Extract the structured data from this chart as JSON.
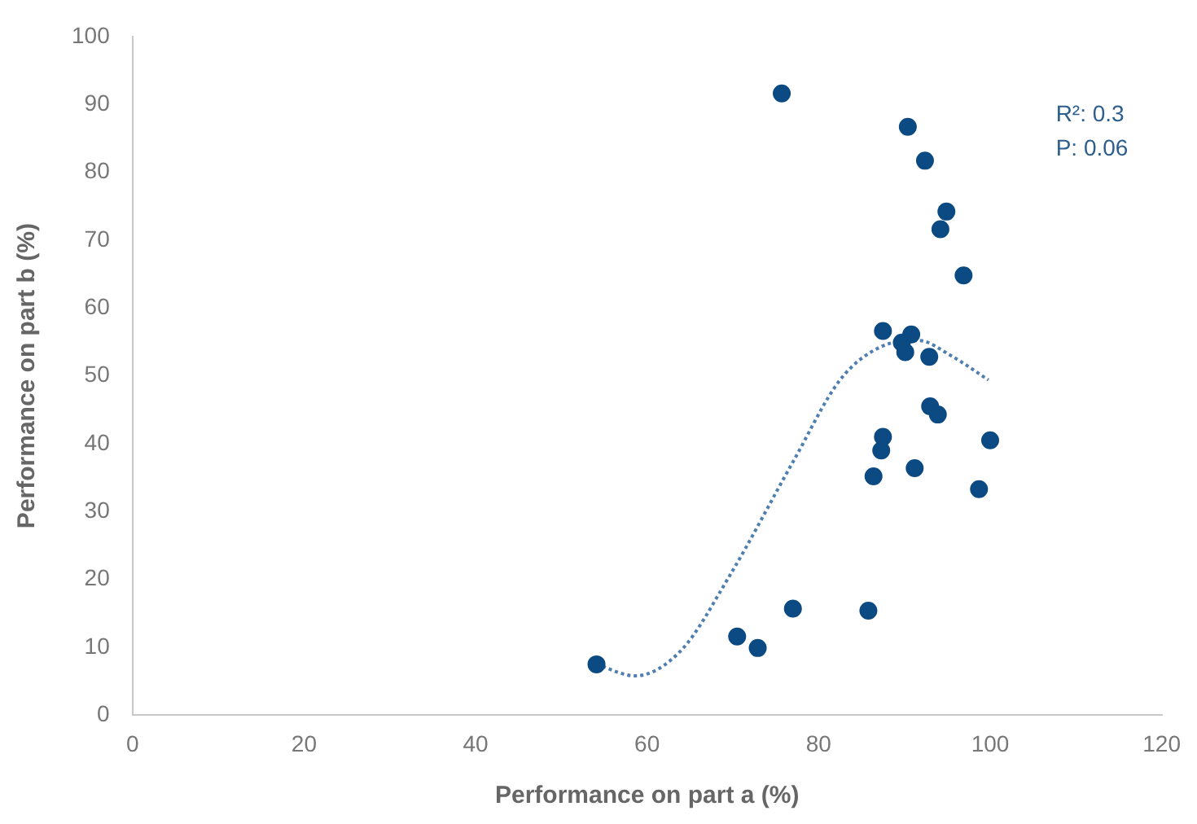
{
  "chart_data": {
    "type": "scatter",
    "xlabel": "Performance on part a (%)",
    "ylabel": "Performance on part b (%)",
    "xlim": [
      0,
      120
    ],
    "xticks": [
      0,
      20,
      40,
      60,
      80,
      100,
      120
    ],
    "ylim": [
      0,
      100
    ],
    "yticks": [
      0,
      10,
      20,
      30,
      40,
      50,
      60,
      70,
      80,
      90,
      100
    ],
    "grid": false,
    "legend": false,
    "marker": "circle",
    "annotations": [
      "R²: 0.3",
      "P: 0.06"
    ],
    "series": [
      {
        "color": "#0b4a82",
        "x": [
          54.1,
          75.7,
          90.4,
          92.4,
          94.9,
          94.2,
          96.9,
          87.5,
          90.8,
          89.7,
          90.1,
          92.9,
          93.0,
          93.9,
          87.5,
          87.3,
          100.0,
          91.2,
          86.4,
          98.7,
          70.5,
          72.9,
          77.0,
          85.8
        ],
        "values": [
          7.5,
          91.6,
          86.7,
          81.7,
          74.2,
          71.6,
          64.8,
          56.6,
          56.1,
          54.9,
          53.5,
          52.8,
          45.5,
          44.3,
          41.0,
          39.0,
          40.5,
          36.4,
          35.2,
          33.3,
          11.6,
          9.9,
          15.7,
          15.4
        ]
      },
      {
        "type": "line",
        "color": "#4f7fb0",
        "line_style": "dotted",
        "marker": "none",
        "x": [
          54.1,
          58.6,
          64,
          69.6,
          77,
          82.5,
          87.1,
          91.7,
          95.4,
          99.8
        ],
        "values": [
          7.5,
          5.8,
          9.6,
          20.5,
          37.3,
          49.4,
          54.2,
          55.2,
          53,
          49.4
        ]
      }
    ]
  }
}
